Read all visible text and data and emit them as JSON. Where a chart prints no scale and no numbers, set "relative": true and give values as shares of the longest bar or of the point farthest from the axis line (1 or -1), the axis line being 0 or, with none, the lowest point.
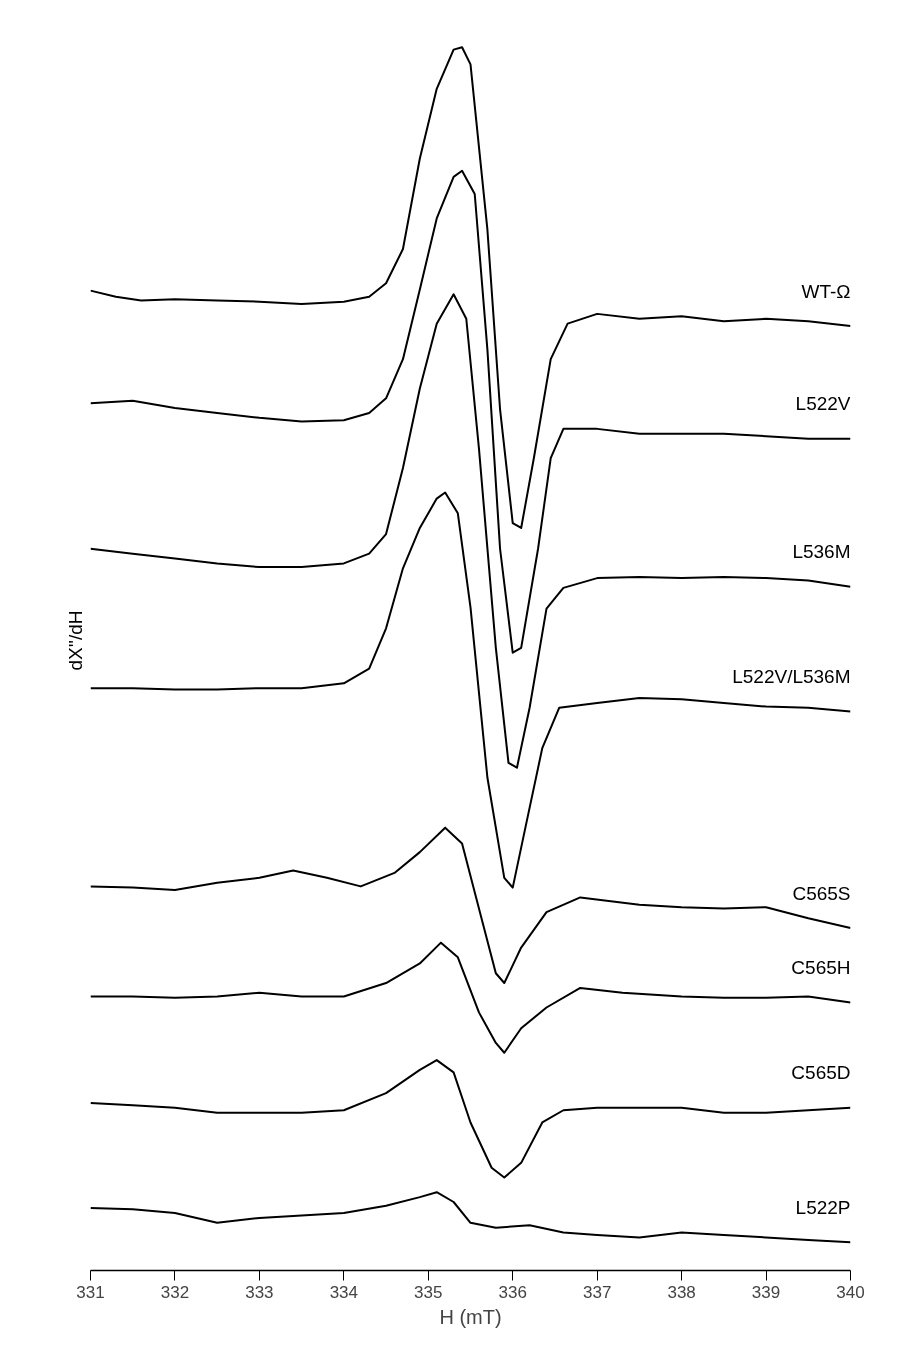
{
  "chart_data": {
    "type": "line",
    "relative": true,
    "xlabel": "H (mT)",
    "ylabel": "dX''/dH",
    "xlim": [
      331,
      340
    ],
    "xticks": [
      331,
      332,
      333,
      334,
      335,
      336,
      337,
      338,
      339,
      340
    ],
    "grid": false,
    "legend": false,
    "line_style": "solid",
    "marker": "none",
    "tick_labels": "x",
    "series": [
      {
        "name": "WT-Ω",
        "color": "#000000",
        "x": [
          331.0,
          331.3,
          331.6,
          332.0,
          332.5,
          333.0,
          333.5,
          334.0,
          334.3,
          334.5,
          334.7,
          334.9,
          335.1,
          335.3,
          335.4,
          335.5,
          335.7,
          335.85,
          336.0,
          336.1,
          336.25,
          336.45,
          336.65,
          337.0,
          337.5,
          338.0,
          338.5,
          339.0,
          339.5,
          340.0
        ],
        "values": [
          0.801,
          0.796,
          0.793,
          0.794,
          0.793,
          0.792,
          0.79,
          0.792,
          0.796,
          0.807,
          0.835,
          0.909,
          0.966,
          0.998,
          1.0,
          0.986,
          0.851,
          0.704,
          0.611,
          0.607,
          0.664,
          0.745,
          0.774,
          0.782,
          0.778,
          0.78,
          0.776,
          0.778,
          0.776,
          0.772
        ]
      },
      {
        "name": "L522V",
        "color": "#000000",
        "x": [
          331.0,
          331.5,
          332.0,
          332.5,
          333.0,
          333.5,
          334.0,
          334.3,
          334.5,
          334.7,
          334.9,
          335.1,
          335.3,
          335.4,
          335.55,
          335.7,
          335.85,
          336.0,
          336.1,
          336.3,
          336.45,
          336.6,
          337.0,
          337.5,
          338.0,
          338.5,
          339.0,
          339.5,
          340.0
        ],
        "values": [
          0.709,
          0.711,
          0.705,
          0.701,
          0.697,
          0.694,
          0.695,
          0.701,
          0.713,
          0.745,
          0.802,
          0.86,
          0.894,
          0.899,
          0.88,
          0.753,
          0.59,
          0.505,
          0.509,
          0.59,
          0.664,
          0.688,
          0.688,
          0.684,
          0.684,
          0.684,
          0.682,
          0.68,
          0.68
        ]
      },
      {
        "name": "L536M",
        "color": "#000000",
        "x": [
          331.0,
          331.5,
          332.0,
          332.5,
          333.0,
          333.5,
          334.0,
          334.3,
          334.5,
          334.7,
          334.9,
          335.1,
          335.3,
          335.45,
          335.6,
          335.8,
          335.95,
          336.05,
          336.2,
          336.4,
          336.6,
          337.0,
          337.5,
          338.0,
          338.5,
          339.0,
          339.5,
          340.0
        ],
        "values": [
          0.59,
          0.586,
          0.582,
          0.578,
          0.575,
          0.575,
          0.578,
          0.586,
          0.602,
          0.656,
          0.721,
          0.774,
          0.798,
          0.778,
          0.672,
          0.509,
          0.415,
          0.411,
          0.46,
          0.541,
          0.558,
          0.566,
          0.567,
          0.566,
          0.567,
          0.566,
          0.564,
          0.559
        ]
      },
      {
        "name": "L522V/L536M",
        "color": "#000000",
        "x": [
          331.0,
          331.5,
          332.0,
          332.5,
          333.0,
          333.5,
          334.0,
          334.3,
          334.5,
          334.7,
          334.9,
          335.1,
          335.2,
          335.35,
          335.5,
          335.7,
          335.9,
          336.0,
          336.15,
          336.35,
          336.55,
          337.0,
          337.5,
          338.0,
          338.5,
          339.0,
          339.5,
          340.0
        ],
        "values": [
          0.476,
          0.476,
          0.475,
          0.475,
          0.476,
          0.476,
          0.48,
          0.492,
          0.525,
          0.574,
          0.607,
          0.631,
          0.636,
          0.619,
          0.542,
          0.403,
          0.321,
          0.313,
          0.362,
          0.427,
          0.46,
          0.464,
          0.468,
          0.467,
          0.464,
          0.461,
          0.46,
          0.457
        ]
      },
      {
        "name": "C565S",
        "color": "#000000",
        "x": [
          331.0,
          331.5,
          332.0,
          332.5,
          333.0,
          333.4,
          333.8,
          334.2,
          334.6,
          334.9,
          335.2,
          335.4,
          335.6,
          335.8,
          335.9,
          336.1,
          336.4,
          336.8,
          337.5,
          338.0,
          338.5,
          339.0,
          339.5,
          340.0
        ],
        "values": [
          0.314,
          0.313,
          0.311,
          0.317,
          0.321,
          0.327,
          0.321,
          0.314,
          0.325,
          0.342,
          0.362,
          0.349,
          0.296,
          0.243,
          0.235,
          0.264,
          0.293,
          0.305,
          0.299,
          0.297,
          0.296,
          0.297,
          0.288,
          0.28
        ]
      },
      {
        "name": "C565H",
        "color": "#000000",
        "x": [
          331.0,
          331.5,
          332.0,
          332.5,
          333.0,
          333.5,
          334.0,
          334.5,
          334.9,
          335.15,
          335.35,
          335.6,
          335.8,
          335.9,
          336.1,
          336.4,
          336.8,
          337.3,
          338.0,
          338.5,
          339.0,
          339.5,
          340.0
        ],
        "values": [
          0.224,
          0.224,
          0.223,
          0.224,
          0.227,
          0.224,
          0.224,
          0.235,
          0.251,
          0.268,
          0.256,
          0.211,
          0.186,
          0.178,
          0.198,
          0.215,
          0.231,
          0.227,
          0.224,
          0.223,
          0.223,
          0.224,
          0.219
        ]
      },
      {
        "name": "C565D",
        "color": "#000000",
        "x": [
          331.0,
          331.5,
          332.0,
          332.5,
          333.0,
          333.5,
          334.0,
          334.5,
          334.9,
          335.1,
          335.3,
          335.5,
          335.75,
          335.9,
          336.1,
          336.35,
          336.6,
          337.0,
          337.5,
          338.0,
          338.5,
          339.0,
          339.5,
          340.0
        ],
        "values": [
          0.137,
          0.135,
          0.133,
          0.129,
          0.129,
          0.129,
          0.131,
          0.145,
          0.164,
          0.172,
          0.162,
          0.121,
          0.084,
          0.076,
          0.088,
          0.121,
          0.131,
          0.133,
          0.133,
          0.133,
          0.129,
          0.129,
          0.131,
          0.133
        ]
      },
      {
        "name": "L522P",
        "color": "#000000",
        "x": [
          331.0,
          331.5,
          332.0,
          332.5,
          333.0,
          333.5,
          334.0,
          334.5,
          334.9,
          335.1,
          335.3,
          335.5,
          335.8,
          336.2,
          336.6,
          337.0,
          337.5,
          338.0,
          338.5,
          339.0,
          339.5,
          340.0
        ],
        "values": [
          0.051,
          0.05,
          0.047,
          0.039,
          0.043,
          0.045,
          0.047,
          0.053,
          0.06,
          0.064,
          0.056,
          0.039,
          0.035,
          0.037,
          0.031,
          0.029,
          0.027,
          0.031,
          0.029,
          0.027,
          0.025,
          0.023
        ]
      }
    ]
  }
}
